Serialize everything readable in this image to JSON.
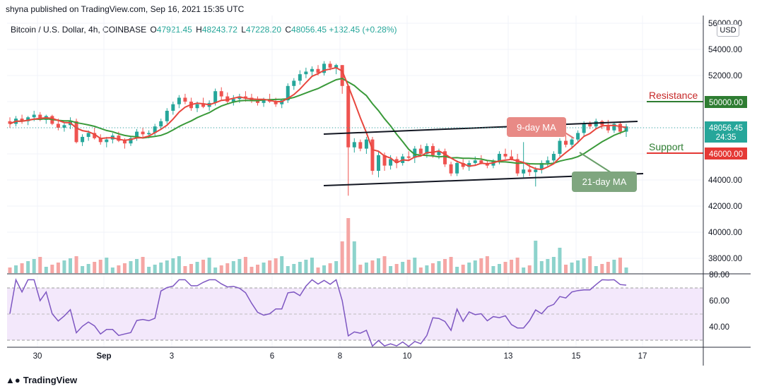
{
  "publisher_line": "shyna published on TradingView.com, Sep 16, 2021 15:35 UTC",
  "legend": {
    "symbol": "Bitcoin / U.S. Dollar, 4h, COINBASE",
    "o_label": "O",
    "o_value": "47921.45",
    "h_label": "H",
    "h_value": "48243.72",
    "l_label": "L",
    "l_value": "47228.20",
    "c_label": "C",
    "c_value": "48056.45",
    "change": "+132.45 (+0.28%)"
  },
  "currency_button": "USD",
  "brand": "TradingView",
  "colors": {
    "up": "#26a69a",
    "down": "#ef5350",
    "ma9": "#e8473e",
    "ma21": "#3a9a3a",
    "channel": "#131722",
    "rsi_line": "#7e57c2",
    "rsi_band": "#f1e6fb",
    "resistance": "#2e7d32",
    "support_line": "#e53935"
  },
  "chart_data": {
    "type": "candlestick",
    "title": "Bitcoin / U.S. Dollar, 4h, COINBASE",
    "price_axis": {
      "ticks": [
        "56000.00",
        "54000.00",
        "52000.00",
        "50000.00",
        "48000.00",
        "46000.00",
        "44000.00",
        "42000.00",
        "40000.00",
        "38000.00"
      ],
      "range": [
        37000,
        56200
      ]
    },
    "time_axis": {
      "ticks": [
        "30",
        "Sep",
        "3",
        "6",
        "8",
        "10",
        "13",
        "15",
        "17"
      ]
    },
    "current_price": "48056.45",
    "countdown": "24:35",
    "levels": [
      {
        "name": "Resistance",
        "value": 50000,
        "label": "50000.00"
      },
      {
        "name": "Support",
        "value": 46000,
        "label": "46000.00"
      }
    ],
    "annotations": [
      "9-day MA",
      "21-day MA"
    ],
    "candles": [
      [
        48500,
        48800,
        48000,
        48300
      ],
      [
        48300,
        48900,
        48100,
        48700
      ],
      [
        48700,
        49000,
        48300,
        48500
      ],
      [
        48500,
        48900,
        48200,
        48800
      ],
      [
        48800,
        49300,
        48500,
        49000
      ],
      [
        49000,
        49200,
        48500,
        48600
      ],
      [
        48600,
        49000,
        48300,
        48900
      ],
      [
        48900,
        49000,
        48200,
        48300
      ],
      [
        48300,
        48700,
        47800,
        48000
      ],
      [
        48000,
        48400,
        47700,
        48200
      ],
      [
        48200,
        48800,
        47900,
        48500
      ],
      [
        48500,
        48700,
        46800,
        46900
      ],
      [
        46900,
        47500,
        46600,
        47300
      ],
      [
        47300,
        47800,
        47000,
        47600
      ],
      [
        47600,
        48000,
        47100,
        47200
      ],
      [
        47200,
        47500,
        46700,
        46900
      ],
      [
        46900,
        47300,
        46500,
        47100
      ],
      [
        47100,
        47600,
        46800,
        47400
      ],
      [
        47400,
        47700,
        46900,
        47000
      ],
      [
        47000,
        47200,
        46400,
        46800
      ],
      [
        46800,
        47300,
        46600,
        47200
      ],
      [
        47200,
        47900,
        47000,
        47700
      ],
      [
        47700,
        48000,
        47300,
        47500
      ],
      [
        47500,
        47800,
        47200,
        47600
      ],
      [
        47600,
        48300,
        47400,
        48100
      ],
      [
        48100,
        48700,
        47900,
        48500
      ],
      [
        48500,
        49500,
        48300,
        49300
      ],
      [
        49300,
        50000,
        49000,
        49800
      ],
      [
        49800,
        50500,
        49500,
        50300
      ],
      [
        50300,
        50600,
        49800,
        50000
      ],
      [
        50000,
        50300,
        49300,
        49500
      ],
      [
        49500,
        50000,
        49200,
        49800
      ],
      [
        49800,
        50300,
        49500,
        49600
      ],
      [
        49600,
        50100,
        49300,
        49900
      ],
      [
        49900,
        51000,
        49700,
        50800
      ],
      [
        50800,
        51100,
        50100,
        50400
      ],
      [
        50400,
        50700,
        49800,
        50000
      ],
      [
        50000,
        50500,
        49700,
        50200
      ],
      [
        50200,
        50600,
        49900,
        50400
      ],
      [
        50400,
        50800,
        50000,
        50300
      ],
      [
        50300,
        50600,
        49900,
        50100
      ],
      [
        50100,
        50400,
        49700,
        49900
      ],
      [
        49900,
        50300,
        49600,
        50200
      ],
      [
        50200,
        50600,
        49900,
        50000
      ],
      [
        50000,
        50300,
        49600,
        49800
      ],
      [
        49800,
        50200,
        49500,
        50100
      ],
      [
        50100,
        51400,
        49900,
        51200
      ],
      [
        51200,
        51800,
        50900,
        51600
      ],
      [
        51600,
        52400,
        51300,
        52100
      ],
      [
        52100,
        52600,
        51800,
        52300
      ],
      [
        52300,
        52700,
        51900,
        52500
      ],
      [
        52500,
        52800,
        52000,
        52200
      ],
      [
        52200,
        53100,
        52000,
        52900
      ],
      [
        52900,
        53100,
        52400,
        52600
      ],
      [
        52600,
        52900,
        52100,
        52800
      ],
      [
        52800,
        52800,
        50600,
        51200
      ],
      [
        51200,
        51200,
        42800,
        46500
      ],
      [
        46500,
        47200,
        46100,
        46900
      ],
      [
        46900,
        47100,
        46200,
        46400
      ],
      [
        46400,
        47300,
        46000,
        47100
      ],
      [
        47100,
        47300,
        44400,
        44700
      ],
      [
        44700,
        46200,
        44200,
        45900
      ],
      [
        45900,
        46100,
        44700,
        45100
      ],
      [
        45100,
        45900,
        44800,
        45600
      ],
      [
        45600,
        45800,
        44900,
        45300
      ],
      [
        45300,
        46000,
        45100,
        45800
      ],
      [
        45800,
        46200,
        45500,
        45700
      ],
      [
        45700,
        46600,
        45300,
        46400
      ],
      [
        46400,
        46700,
        45800,
        46000
      ],
      [
        46000,
        46800,
        45700,
        46600
      ],
      [
        46600,
        46800,
        45700,
        45900
      ],
      [
        45900,
        46400,
        45600,
        46200
      ],
      [
        46200,
        46400,
        45000,
        45200
      ],
      [
        45200,
        45400,
        44300,
        44500
      ],
      [
        44500,
        45500,
        44300,
        45300
      ],
      [
        45300,
        45600,
        44800,
        45000
      ],
      [
        45000,
        45500,
        44700,
        45300
      ],
      [
        45300,
        45800,
        45100,
        45500
      ],
      [
        45500,
        45900,
        45200,
        45300
      ],
      [
        45300,
        45500,
        44900,
        45100
      ],
      [
        45100,
        45600,
        44900,
        45400
      ],
      [
        45400,
        46200,
        45200,
        46000
      ],
      [
        46000,
        46400,
        45600,
        45800
      ],
      [
        45800,
        46300,
        45500,
        45600
      ],
      [
        45600,
        46000,
        44300,
        44500
      ],
      [
        44500,
        46900,
        44200,
        44800
      ],
      [
        44800,
        45200,
        44300,
        44600
      ],
      [
        44600,
        45000,
        43500,
        44800
      ],
      [
        44800,
        45500,
        44500,
        45300
      ],
      [
        45300,
        45800,
        45000,
        45500
      ],
      [
        45500,
        46200,
        45300,
        46000
      ],
      [
        46000,
        47200,
        45800,
        47000
      ],
      [
        47000,
        47400,
        46500,
        46700
      ],
      [
        46700,
        47300,
        46400,
        47100
      ],
      [
        47100,
        47800,
        46800,
        47600
      ],
      [
        47600,
        48500,
        47300,
        48300
      ],
      [
        48300,
        48500,
        47900,
        48100
      ],
      [
        48100,
        48700,
        47900,
        48500
      ],
      [
        48500,
        48600,
        47900,
        48200
      ],
      [
        48200,
        48600,
        47600,
        47800
      ],
      [
        47800,
        48400,
        47600,
        48300
      ],
      [
        48300,
        48500,
        47500,
        47700
      ],
      [
        47700,
        48300,
        47300,
        48100
      ]
    ]
  }
}
